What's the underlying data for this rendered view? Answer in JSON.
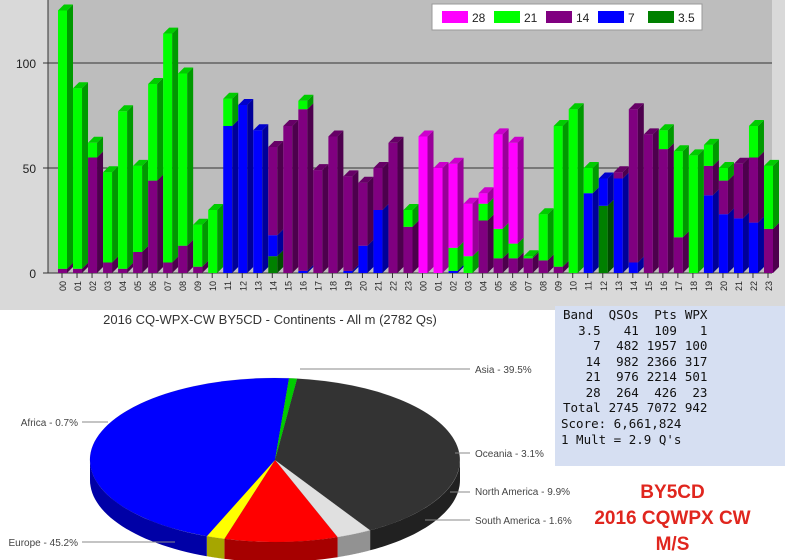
{
  "bar_chart": {
    "legend": [
      "28",
      "21",
      "14",
      "7",
      "3.5"
    ],
    "colors": {
      "28": "#ff00ff",
      "21": "#00ff00",
      "14": "#800080",
      "7": "#0000ff",
      "3.5": "#008000"
    },
    "yticks": [
      "100",
      "50",
      "0"
    ]
  },
  "pie_chart": {
    "title": "2016 CQ-WPX-CW BY5CD - Continents - All m (2782 Qs)",
    "labels": {
      "asia": "Asia - 39.5%",
      "oceania": "Oceania - 3.1%",
      "north_america": "North America - 9.9%",
      "south_america": "South America - 1.6%",
      "europe": "Europe - 45.2%",
      "africa": "Africa - 0.7%"
    }
  },
  "stats": {
    "headers": [
      "Band",
      "QSOs",
      "Pts",
      "WPX"
    ],
    "rows": [
      [
        "3.5",
        "41",
        "109",
        "1"
      ],
      [
        "7",
        "482",
        "1957",
        "100"
      ],
      [
        "14",
        "982",
        "2366",
        "317"
      ],
      [
        "21",
        "976",
        "2214",
        "501"
      ],
      [
        "28",
        "264",
        "426",
        "23"
      ],
      [
        "Total",
        "2745",
        "7072",
        "942"
      ]
    ],
    "score": "Score: 6,661,824",
    "mult": "1 Mult = 2.9 Q's"
  },
  "stamp": {
    "line1": "BY5CD",
    "line2": "2016 CQWPX CW",
    "line3": "M/S"
  },
  "chart_data": [
    {
      "type": "bar",
      "stacked": true,
      "title": "",
      "xlabel": "",
      "ylabel": "",
      "ylim": [
        0,
        125
      ],
      "grid": true,
      "legend_position": "top-right",
      "categories": [
        "00",
        "01",
        "02",
        "03",
        "04",
        "05",
        "06",
        "07",
        "08",
        "09",
        "10",
        "11",
        "12",
        "13",
        "14",
        "15",
        "16",
        "17",
        "18",
        "19",
        "20",
        "21",
        "22",
        "23",
        "00",
        "01",
        "02",
        "03",
        "04",
        "05",
        "06",
        "07",
        "08",
        "09",
        "10",
        "11",
        "12",
        "13",
        "14",
        "15",
        "16",
        "17",
        "18",
        "19",
        "20",
        "21",
        "22",
        "23"
      ],
      "series": [
        {
          "name": "3.5",
          "values": [
            0,
            0,
            0,
            0,
            0,
            0,
            0,
            0,
            0,
            0,
            0,
            0,
            0,
            0,
            8,
            0,
            0,
            0,
            0,
            0,
            0,
            0,
            0,
            0,
            0,
            0,
            0,
            0,
            0,
            0,
            0,
            0,
            0,
            0,
            0,
            0,
            32,
            0,
            0,
            0,
            0,
            0,
            0,
            0,
            0,
            0,
            0,
            0
          ]
        },
        {
          "name": "7",
          "values": [
            0,
            0,
            0,
            0,
            0,
            0,
            0,
            0,
            0,
            0,
            0,
            70,
            80,
            68,
            10,
            0,
            1,
            0,
            0,
            1,
            13,
            30,
            0,
            0,
            0,
            0,
            1,
            0,
            0,
            0,
            0,
            0,
            0,
            0,
            0,
            38,
            13,
            45,
            5,
            0,
            0,
            0,
            0,
            37,
            28,
            26,
            24,
            0
          ]
        },
        {
          "name": "14",
          "values": [
            2,
            2,
            55,
            5,
            2,
            10,
            44,
            5,
            13,
            3,
            0,
            0,
            0,
            0,
            42,
            70,
            77,
            49,
            65,
            45,
            30,
            20,
            62,
            22,
            0,
            0,
            0,
            0,
            25,
            7,
            7,
            7,
            6,
            3,
            0,
            0,
            0,
            3,
            73,
            66,
            59,
            17,
            0,
            14,
            16,
            26,
            31,
            21
          ]
        },
        {
          "name": "21",
          "values": [
            123,
            86,
            7,
            43,
            75,
            41,
            46,
            109,
            82,
            20,
            30,
            13,
            0,
            0,
            0,
            0,
            4,
            0,
            0,
            0,
            0,
            0,
            0,
            8,
            0,
            0,
            11,
            8,
            8,
            14,
            7,
            1,
            22,
            67,
            78,
            12,
            0,
            0,
            0,
            0,
            9,
            41,
            56,
            10,
            6,
            0,
            15,
            30
          ]
        },
        {
          "name": "28",
          "values": [
            0,
            0,
            0,
            0,
            0,
            0,
            0,
            0,
            0,
            0,
            0,
            0,
            0,
            0,
            0,
            0,
            0,
            0,
            0,
            0,
            0,
            0,
            0,
            0,
            65,
            50,
            40,
            25,
            5,
            45,
            48,
            0,
            0,
            0,
            0,
            0,
            0,
            0,
            0,
            0,
            0,
            0,
            0,
            0,
            0,
            0,
            0,
            0
          ]
        }
      ]
    },
    {
      "type": "pie",
      "title": "2016 CQ-WPX-CW BY5CD - Continents - All m (2782 Qs)",
      "categories": [
        "Asia",
        "Oceania",
        "North America",
        "South America",
        "Europe",
        "Africa"
      ],
      "values": [
        39.5,
        3.1,
        9.9,
        1.6,
        45.2,
        0.7
      ],
      "colors": [
        "#333333",
        "#e0e0e0",
        "#ff0000",
        "#ffff00",
        "#0000ff",
        "#00cc00"
      ]
    }
  ]
}
